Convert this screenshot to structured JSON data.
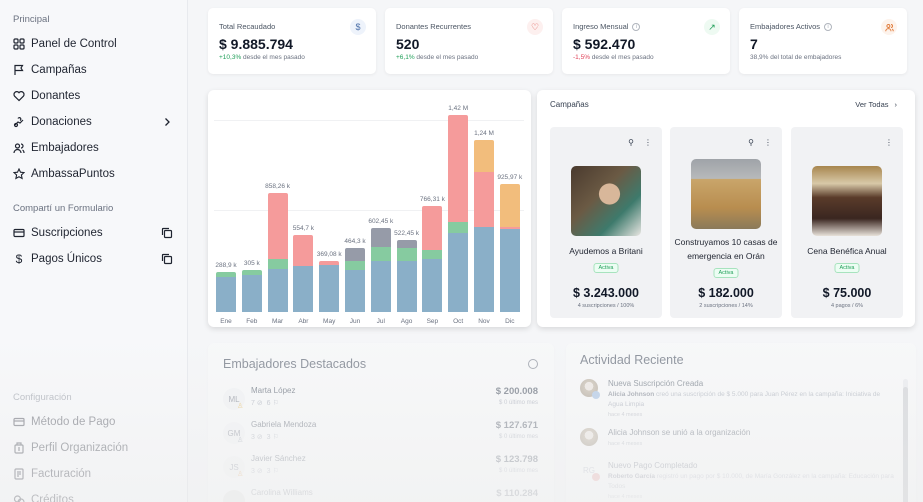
{
  "sidebar": {
    "principal_heading": "Principal",
    "principal_items": [
      {
        "label": "Panel de Control",
        "icon": "grid-icon"
      },
      {
        "label": "Campañas",
        "icon": "flag-icon"
      },
      {
        "label": "Donantes",
        "icon": "heart-icon"
      },
      {
        "label": "Donaciones",
        "icon": "hand-coin-icon",
        "has_chevron": true
      },
      {
        "label": "Embajadores",
        "icon": "users-icon"
      },
      {
        "label": "AmbassaPuntos",
        "icon": "star-icon"
      }
    ],
    "share_heading": "Compartí un Formulario",
    "share_items": [
      {
        "label": "Suscripciones",
        "icon": "card-icon"
      },
      {
        "label": "Pagos Únicos",
        "icon": "dollar-icon"
      }
    ],
    "config_heading": "Configuración",
    "config_items": [
      {
        "label": "Método de Pago",
        "icon": "card-icon"
      },
      {
        "label": "Perfil Organización",
        "icon": "building-icon"
      },
      {
        "label": "Facturación",
        "icon": "invoice-icon"
      },
      {
        "label": "Créditos",
        "icon": "coins-icon"
      }
    ]
  },
  "kpis": [
    {
      "title": "Total Recaudado",
      "value": "$ 9.885.794",
      "change": "+10,3%",
      "change_type": "pos",
      "suffix": " desde el mes pasado",
      "icon": "$",
      "icon_color": "#4b6fa8",
      "icon_bg": "#eef3fb",
      "info": false
    },
    {
      "title": "Donantes Recurrentes",
      "value": "520",
      "change": "+6,1%",
      "change_type": "pos",
      "suffix": " desde el mes pasado",
      "icon": "♡",
      "icon_color": "#d9453f",
      "icon_bg": "#fdf0ef",
      "info": false
    },
    {
      "title": "Ingreso Mensual",
      "value": "$ 592.470",
      "change": "-1,5%",
      "change_type": "neg",
      "suffix": " desde el mes pasado",
      "icon": "↗",
      "icon_color": "#22a05a",
      "icon_bg": "#eefaf2",
      "info": true
    },
    {
      "title": "Embajadores Activos",
      "value": "7",
      "change": "",
      "change_type": "none",
      "suffix": "38,9% del total de embajadores",
      "icon": "👥",
      "icon_color": "#e07b3a",
      "icon_bg": "#fdf3ec",
      "info": true
    }
  ],
  "chart_data": {
    "type": "bar",
    "stacked": true,
    "title": "",
    "xlabel": "",
    "ylabel": "",
    "categories": [
      "Ene",
      "Feb",
      "Mar",
      "Abr",
      "May",
      "Jun",
      "Jul",
      "Ago",
      "Sep",
      "Oct",
      "Nov",
      "Dic"
    ],
    "totals_labels": [
      "288,9 k",
      "305 k",
      "858,26 k",
      "554,7 k",
      "369,08 k",
      "464,3 k",
      "602,45 k",
      "522,45 k",
      "766,31 k",
      "1,42 M",
      "1,24 M",
      "925,97 k"
    ],
    "totals": [
      288.9,
      305,
      858.26,
      554.7,
      369.08,
      464.3,
      602.45,
      522.45,
      766.31,
      1420,
      1240,
      925.97
    ],
    "ylim": [
      0,
      1500
    ],
    "grid": true,
    "series": [
      {
        "name": "Base",
        "color": "#8aafc8",
        "values": [
          250,
          270,
          310,
          330,
          340,
          300,
          370,
          370,
          380,
          570,
          610,
          600
        ]
      },
      {
        "name": "Verde",
        "color": "#86cba0",
        "values": [
          38.9,
          35,
          70,
          0,
          0,
          70,
          100,
          95,
          70,
          80,
          0,
          0
        ]
      },
      {
        "name": "Rojo",
        "color": "#f59b9b",
        "values": [
          0,
          0,
          478.26,
          224.7,
          29.08,
          0,
          0,
          0,
          316.31,
          770,
          400,
          15
        ]
      },
      {
        "name": "Gris",
        "color": "#969ba8",
        "values": [
          0,
          0,
          0,
          0,
          0,
          94.3,
          132.45,
          57.45,
          0,
          0,
          0,
          0
        ]
      },
      {
        "name": "Naranja",
        "color": "#f2bd7c",
        "values": [
          0,
          0,
          0,
          0,
          0,
          0,
          0,
          0,
          0,
          0,
          230,
          310.97
        ]
      }
    ]
  },
  "campaigns": {
    "title": "Campañas",
    "view_all": "Ver Todas",
    "items": [
      {
        "name": "Ayudemos a Britani",
        "status": "Activa",
        "amount": "$ 3.243.000",
        "meta": "4 suscripciones / 100%",
        "pinned": true,
        "image": "child-photo"
      },
      {
        "name": "Construyamos 10 casas de emergencia en Orán",
        "status": "Activa",
        "amount": "$ 182.000",
        "meta": "2 suscripciones / 14%",
        "pinned": true,
        "image": "house-construction-photo"
      },
      {
        "name": "Cena Benéfica Anual",
        "status": "Activa",
        "amount": "$ 75.000",
        "meta": "4 pagos / 6%",
        "pinned": false,
        "image": "gala-dinner-photo"
      }
    ]
  },
  "ambassadors": {
    "title": "Embajadores Destacados",
    "items": [
      {
        "initials": "ML",
        "name": "Marta López",
        "donations": "7",
        "campaigns": "6",
        "amount": "$ 200.008",
        "last": "$ 0 último mes"
      },
      {
        "initials": "GM",
        "name": "Gabriela Mendoza",
        "donations": "3",
        "campaigns": "3",
        "amount": "$ 127.671",
        "last": "$ 0 último mes"
      },
      {
        "initials": "JS",
        "name": "Javier Sánchez",
        "donations": "3",
        "campaigns": "3",
        "amount": "$ 123.798",
        "last": "$ 0 último mes"
      },
      {
        "initials": "",
        "name": "Carolina Williams",
        "donations": "",
        "campaigns": "",
        "amount": "$ 110.284",
        "last": ""
      }
    ]
  },
  "activity": {
    "title": "Actividad Reciente",
    "items": [
      {
        "title": "Nueva Suscripción Creada",
        "actor": "Alicia Johnson",
        "desc": " creó una suscripción de $ 5.000 para Juan Pérez en la campaña: Iniciativa de Agua Limpia",
        "time": "hace 4 meses",
        "avatar": "photo",
        "badge_color": "#93b6e0"
      },
      {
        "title": "Alicia Johnson se unió a la organización",
        "actor": "",
        "desc": "",
        "time": "hace 4 meses",
        "avatar": "photo",
        "badge_color": ""
      },
      {
        "title": "Nuevo Pago Completado",
        "actor": "Roberto García",
        "desc": " registró un pago por $ 10.000, de María González en la campaña: Educación para Todos",
        "time": "hace 4 meses",
        "avatar": "RG",
        "badge_color": "#e88a8a"
      }
    ]
  }
}
